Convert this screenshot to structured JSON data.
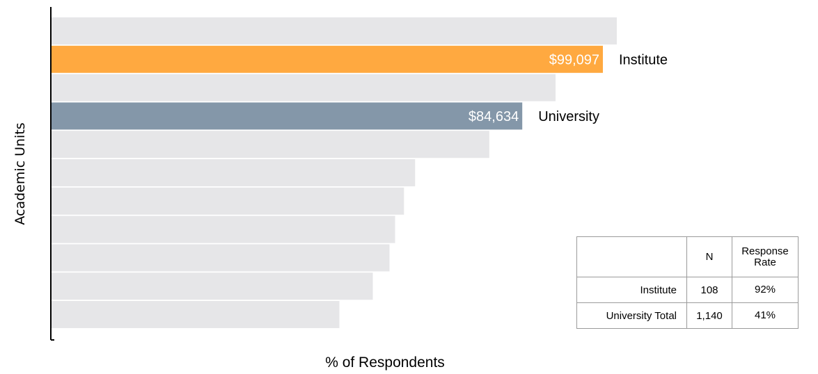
{
  "chart_data": {
    "type": "bar",
    "orientation": "horizontal",
    "ylabel": "Academic Units",
    "xlabel": "% of Respondents",
    "grid": false,
    "highlighted_bars": [
      {
        "name": "Institute",
        "value_label": "$99,097",
        "value": 99097,
        "rank": 2,
        "color": "#ffa940"
      },
      {
        "name": "University",
        "value_label": "$84,634",
        "value": 84634,
        "rank": 4,
        "color": "#8497a9"
      }
    ],
    "values": [
      101600,
      99097,
      90600,
      84634,
      78700,
      65400,
      63400,
      61800,
      60800,
      57800,
      51800
    ],
    "bar_color": "#e6e6e8",
    "axis_color": "#000000"
  },
  "table": {
    "headers": [
      "",
      "N",
      "Response Rate"
    ],
    "rows": [
      {
        "label": "Institute",
        "n": "108",
        "rate": "92%"
      },
      {
        "label": "University Total",
        "n": "1,140",
        "rate": "41%"
      }
    ]
  }
}
